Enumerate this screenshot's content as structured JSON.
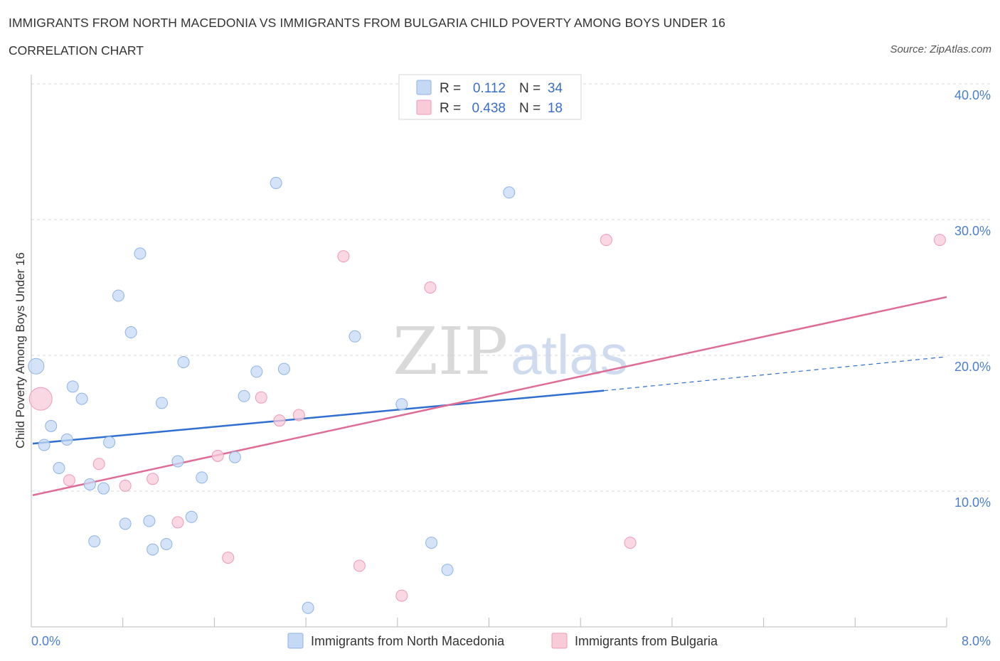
{
  "header": {
    "title": "IMMIGRANTS FROM NORTH MACEDONIA VS IMMIGRANTS FROM BULGARIA CHILD POVERTY AMONG BOYS UNDER 16",
    "subtitle": "CORRELATION CHART",
    "source": "Source: ZipAtlas.com"
  },
  "watermark": {
    "zip": "ZIP",
    "atlas": "atlas"
  },
  "legend": {
    "r_label": "R =",
    "n_label": "N =",
    "rows": [
      {
        "r": "0.112",
        "n": "34",
        "color": "#aecbf2"
      },
      {
        "r": "0.438",
        "n": "18",
        "color": "#f7bccd"
      }
    ]
  },
  "colors": {
    "blue_fill": "#c5d9f4",
    "blue_stroke": "#8fb3e6",
    "blue_line": "#2f6fd0",
    "pink_fill": "#f8cbd9",
    "pink_stroke": "#ee9ab4",
    "pink_line": "#e06c95",
    "grid": "#d8d8d8",
    "axis_text": "#4a7fd0"
  },
  "chart_data": {
    "type": "scatter",
    "title": "IMMIGRANTS FROM NORTH MACEDONIA VS IMMIGRANTS FROM BULGARIA CHILD POVERTY AMONG BOYS UNDER 16",
    "xlabel": "",
    "ylabel": "Child Poverty Among Boys Under 16",
    "xlim": [
      0,
      8
    ],
    "ylim": [
      0,
      40
    ],
    "x_tick_labels": [
      "0.0%",
      "8.0%"
    ],
    "y_ticks": [
      10,
      20,
      30,
      40
    ],
    "y_tick_labels": [
      "10.0%",
      "20.0%",
      "30.0%",
      "40.0%"
    ],
    "series": [
      {
        "name": "Immigrants from North Macedonia",
        "r": 0.112,
        "n": 34,
        "trend": {
          "x0": 0.0,
          "y0": 13.5,
          "x1": 5.0,
          "y1": 17.4,
          "dash_to_x": 8.0,
          "dash_to_y": 19.9
        },
        "points": [
          {
            "x": 0.03,
            "y": 19.2,
            "big": true
          },
          {
            "x": 0.1,
            "y": 13.4
          },
          {
            "x": 0.16,
            "y": 14.8
          },
          {
            "x": 0.23,
            "y": 11.7
          },
          {
            "x": 0.3,
            "y": 13.8
          },
          {
            "x": 0.35,
            "y": 17.7
          },
          {
            "x": 0.43,
            "y": 16.8
          },
          {
            "x": 0.5,
            "y": 10.5
          },
          {
            "x": 0.54,
            "y": 6.3
          },
          {
            "x": 0.62,
            "y": 10.2
          },
          {
            "x": 0.67,
            "y": 13.6
          },
          {
            "x": 0.75,
            "y": 24.4
          },
          {
            "x": 0.81,
            "y": 7.6
          },
          {
            "x": 0.86,
            "y": 21.7
          },
          {
            "x": 0.94,
            "y": 27.5
          },
          {
            "x": 1.02,
            "y": 7.8
          },
          {
            "x": 1.05,
            "y": 5.7
          },
          {
            "x": 1.13,
            "y": 16.5
          },
          {
            "x": 1.17,
            "y": 6.1
          },
          {
            "x": 1.27,
            "y": 12.2
          },
          {
            "x": 1.32,
            "y": 19.5
          },
          {
            "x": 1.39,
            "y": 8.1
          },
          {
            "x": 1.48,
            "y": 11.0
          },
          {
            "x": 1.77,
            "y": 12.5
          },
          {
            "x": 1.85,
            "y": 17.0
          },
          {
            "x": 1.96,
            "y": 18.8
          },
          {
            "x": 2.13,
            "y": 32.7
          },
          {
            "x": 2.2,
            "y": 19.0
          },
          {
            "x": 2.41,
            "y": 1.4
          },
          {
            "x": 2.82,
            "y": 21.4
          },
          {
            "x": 3.23,
            "y": 16.4
          },
          {
            "x": 3.49,
            "y": 6.2
          },
          {
            "x": 3.63,
            "y": 4.2
          },
          {
            "x": 4.17,
            "y": 32.0
          }
        ]
      },
      {
        "name": "Immigrants from Bulgaria",
        "r": 0.438,
        "n": 18,
        "trend": {
          "x0": 0.0,
          "y0": 9.7,
          "x1": 8.0,
          "y1": 24.3
        },
        "points": [
          {
            "x": 0.07,
            "y": 16.8,
            "big": true
          },
          {
            "x": 0.32,
            "y": 10.8
          },
          {
            "x": 0.58,
            "y": 12.0
          },
          {
            "x": 0.81,
            "y": 10.4
          },
          {
            "x": 1.05,
            "y": 10.9
          },
          {
            "x": 1.27,
            "y": 7.7
          },
          {
            "x": 1.62,
            "y": 12.6
          },
          {
            "x": 1.71,
            "y": 5.1
          },
          {
            "x": 2.0,
            "y": 16.9
          },
          {
            "x": 2.16,
            "y": 15.2
          },
          {
            "x": 2.33,
            "y": 15.6
          },
          {
            "x": 2.72,
            "y": 27.3
          },
          {
            "x": 2.86,
            "y": 4.5
          },
          {
            "x": 3.23,
            "y": 2.3
          },
          {
            "x": 3.48,
            "y": 25.0
          },
          {
            "x": 5.02,
            "y": 28.5
          },
          {
            "x": 5.23,
            "y": 6.2
          },
          {
            "x": 7.94,
            "y": 28.5
          }
        ]
      }
    ]
  }
}
